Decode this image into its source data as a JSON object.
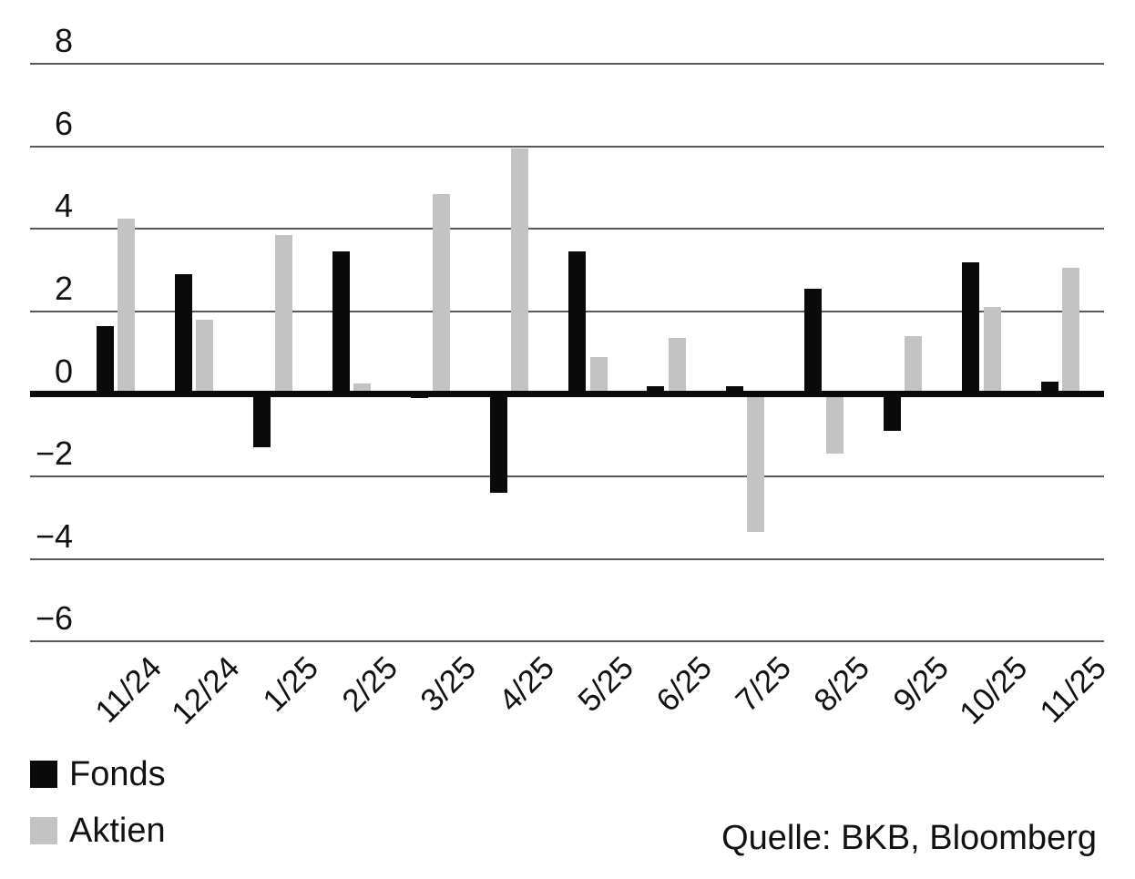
{
  "chart_data": {
    "type": "bar",
    "title": "",
    "categories": [
      "11/24",
      "12/24",
      "1/25",
      "2/25",
      "3/25",
      "4/25",
      "5/25",
      "6/25",
      "7/25",
      "8/25",
      "9/25",
      "10/25",
      "11/25"
    ],
    "series": [
      {
        "name": "Fonds",
        "color": "#0a0a0a",
        "values": [
          1.65,
          2.9,
          -1.3,
          3.45,
          -0.1,
          -2.4,
          3.45,
          0.2,
          0.2,
          2.55,
          -0.9,
          3.2,
          0.3
        ]
      },
      {
        "name": "Aktien",
        "color": "#c3c3c3",
        "values": [
          4.25,
          1.8,
          3.85,
          0.25,
          4.85,
          5.95,
          0.9,
          1.35,
          -3.35,
          -1.45,
          1.4,
          2.1,
          3.05
        ]
      }
    ],
    "xlabel": "",
    "ylabel": "",
    "ylim": [
      -6,
      8
    ],
    "yticks": [
      8,
      6,
      4,
      2,
      0,
      -2,
      -4,
      -6
    ],
    "grid": true,
    "legend_position": "bottom-left",
    "source": "Quelle: BKB, Bloomberg"
  }
}
